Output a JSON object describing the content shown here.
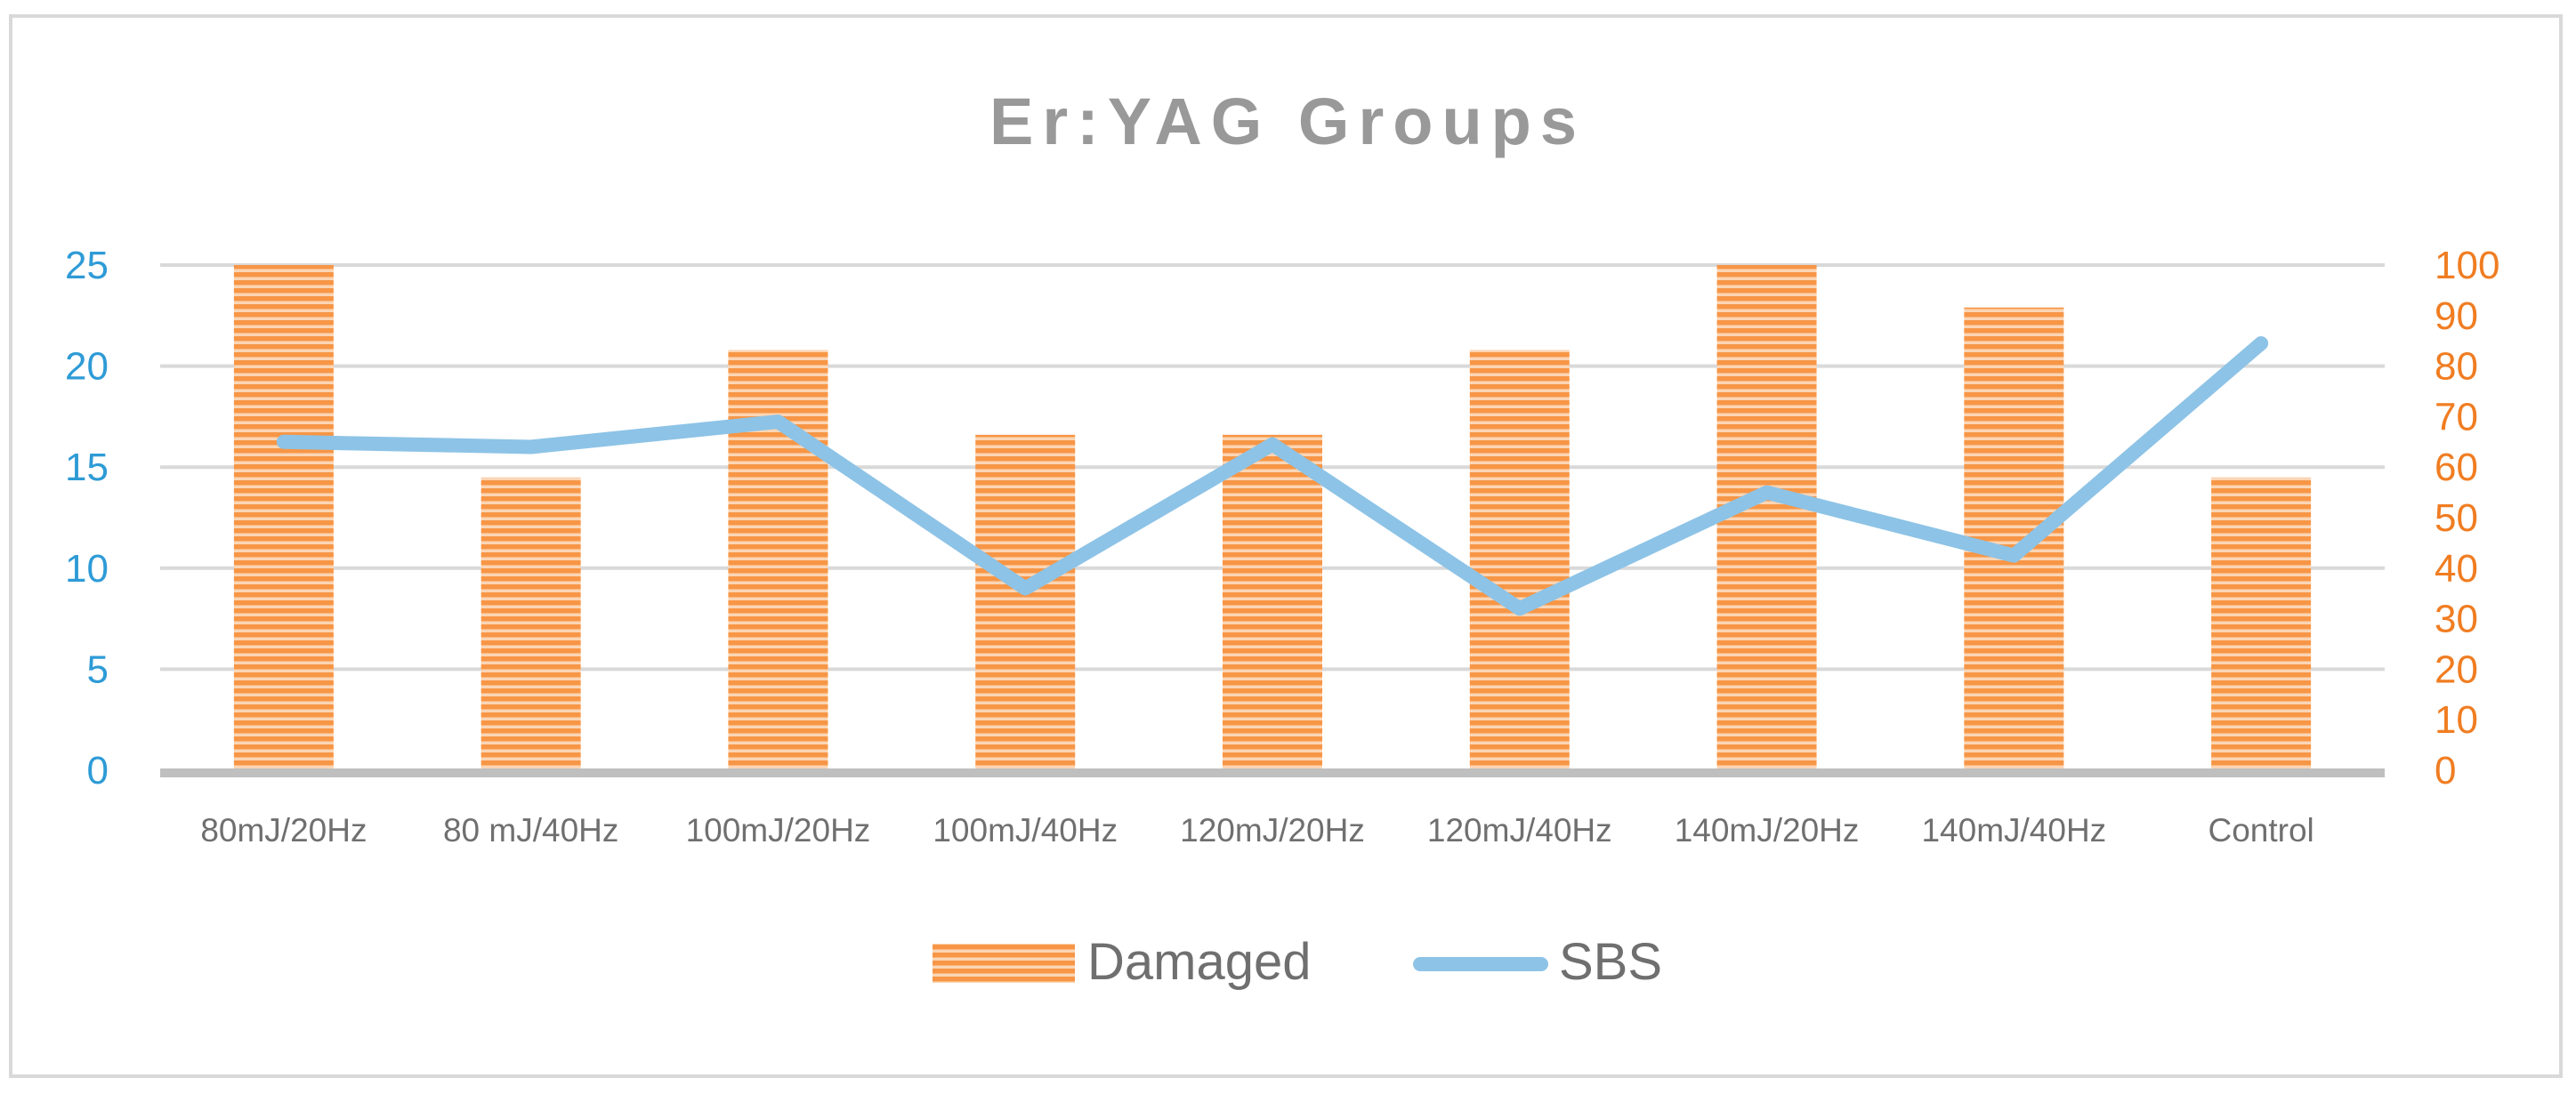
{
  "chart_data": {
    "type": "bar",
    "title": "Er:YAG Groups",
    "categories": [
      "80mJ/20Hz",
      "80 mJ/40Hz",
      "100mJ/20Hz",
      "100mJ/40Hz",
      "120mJ/20Hz",
      "120mJ/40Hz",
      "140mJ/20Hz",
      "140mJ/40Hz",
      "Control"
    ],
    "series": [
      {
        "name": "Damaged",
        "type": "bar",
        "axis": "left",
        "values": [
          25,
          14.5,
          20.8,
          16.6,
          16.6,
          20.8,
          25,
          22.9,
          14.5
        ]
      },
      {
        "name": "SBS",
        "type": "line",
        "axis": "right",
        "values": [
          65,
          64,
          69,
          36,
          64.5,
          32,
          55,
          42.5,
          84.5
        ]
      }
    ],
    "y_left": {
      "ticks": [
        0,
        5,
        10,
        15,
        20,
        25
      ],
      "range": [
        0,
        25
      ]
    },
    "y_right": {
      "ticks": [
        0,
        10,
        20,
        30,
        40,
        50,
        60,
        70,
        80,
        90,
        100
      ],
      "range": [
        0,
        100
      ]
    },
    "grid": true,
    "legend": "bottom",
    "colors": {
      "bar": "#f79646",
      "bar_stripe": "#fcd5b4",
      "line": "#8dc3e6",
      "left_axis_text": "#2e9bd6",
      "right_axis_text": "#f07d22",
      "category_text": "#6f6f6f",
      "title_text": "#999999",
      "gridline": "#d9d9d9",
      "baseline": "#bfbfbf"
    }
  }
}
